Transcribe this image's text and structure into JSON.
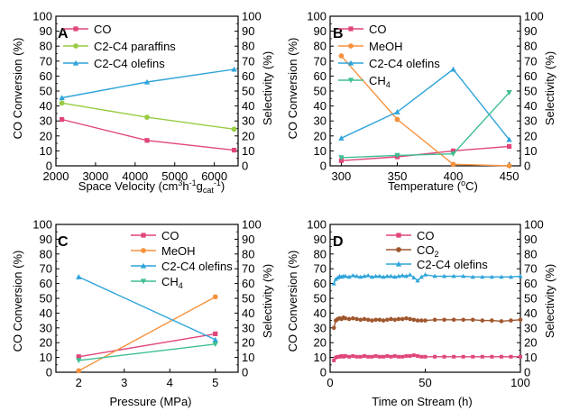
{
  "chart_data": [
    {
      "type": "line",
      "panel_label": "A",
      "xlabel": "Space Velocity (cm³h⁻¹g_cat⁻¹)",
      "xlabel_parts": {
        "a": "Space Velocity (cm",
        "b": "3",
        "c": "h",
        "d": "-1",
        "e": "g",
        "f": "cat",
        "g": "-1",
        "h": ")"
      },
      "ylabel_left": "CO Conversion (%)",
      "ylabel_right": "Selectivity (%)",
      "xlim": [
        2000,
        6600
      ],
      "xticks": [
        2000,
        3000,
        4000,
        5000,
        6000
      ],
      "ylim": [
        0,
        100
      ],
      "yticks": [
        0,
        10,
        20,
        30,
        40,
        50,
        60,
        70,
        80,
        90,
        100
      ],
      "legend_position": "top-left",
      "series": [
        {
          "name": "CO",
          "color": "#e0457b",
          "marker": "square",
          "x": [
            2150,
            4300,
            6500
          ],
          "y": [
            31,
            17,
            10.5
          ]
        },
        {
          "name": "C2-C4 paraffins",
          "color": "#99cc44",
          "marker": "circle",
          "x": [
            2150,
            4300,
            6500
          ],
          "y": [
            42,
            32.5,
            24.5
          ]
        },
        {
          "name": "C2-C4 olefins",
          "color": "#2fa4d9",
          "marker": "triangle",
          "x": [
            2150,
            4300,
            6500
          ],
          "y": [
            45.5,
            56,
            64.5
          ]
        }
      ]
    },
    {
      "type": "line",
      "panel_label": "B",
      "xlabel": "Temperature (ºC)",
      "xlabel_parts": {
        "a": "Temperature (",
        "b": "o",
        "c": "C)"
      },
      "ylabel_left": "CO Conversion (%)",
      "ylabel_right": "Selectivity (%)",
      "xlim": [
        290,
        460
      ],
      "xticks": [
        300,
        350,
        400,
        450
      ],
      "ylim": [
        0,
        100
      ],
      "yticks": [
        0,
        10,
        20,
        30,
        40,
        50,
        60,
        70,
        80,
        90,
        100
      ],
      "legend_position": "top-left",
      "series": [
        {
          "name": "CO",
          "color": "#e0457b",
          "marker": "square",
          "x": [
            300,
            350,
            400,
            450
          ],
          "y": [
            3.5,
            6,
            10,
            13
          ]
        },
        {
          "name": "MeOH",
          "color": "#f5923e",
          "marker": "circle",
          "x": [
            300,
            350,
            400,
            450
          ],
          "y": [
            73.5,
            31,
            1,
            0
          ]
        },
        {
          "name": "C2-C4 olefins",
          "color": "#2fa4d9",
          "marker": "triangle",
          "x": [
            300,
            350,
            400,
            450
          ],
          "y": [
            18.5,
            36,
            64.5,
            17.5
          ]
        },
        {
          "name": "CH4",
          "label_parts": {
            "a": "CH",
            "b": "4"
          },
          "color": "#3fbf8f",
          "marker": "triangle-down",
          "x": [
            300,
            350,
            400,
            450
          ],
          "y": [
            5.5,
            7,
            8,
            49
          ]
        }
      ]
    },
    {
      "type": "line",
      "panel_label": "C",
      "xlabel": "Pressure (MPa)",
      "ylabel_left": "CO Conversion (%)",
      "ylabel_right": "Selectivity (%)",
      "xlim": [
        1.5,
        5.5
      ],
      "xticks": [
        2,
        3,
        4,
        5
      ],
      "ylim": [
        0,
        100
      ],
      "yticks": [
        0,
        10,
        20,
        30,
        40,
        50,
        60,
        70,
        80,
        90,
        100
      ],
      "legend_position": "top-right",
      "series": [
        {
          "name": "CO",
          "color": "#e0457b",
          "marker": "square",
          "x": [
            2,
            5
          ],
          "y": [
            10.5,
            26
          ]
        },
        {
          "name": "MeOH",
          "color": "#f5923e",
          "marker": "circle",
          "x": [
            2,
            5
          ],
          "y": [
            1,
            51
          ]
        },
        {
          "name": "C2-C4 olefins",
          "color": "#2fa4d9",
          "marker": "triangle",
          "x": [
            2,
            5
          ],
          "y": [
            64.5,
            22
          ]
        },
        {
          "name": "CH4",
          "label_parts": {
            "a": "CH",
            "b": "4"
          },
          "color": "#3fbf8f",
          "marker": "triangle-down",
          "x": [
            2,
            5
          ],
          "y": [
            8,
            19
          ]
        }
      ]
    },
    {
      "type": "line",
      "panel_label": "D",
      "xlabel": "Time on Stream (h)",
      "ylabel_left": "CO Conversion (%)",
      "ylabel_right": "Selectivity (%)",
      "xlim": [
        0,
        100
      ],
      "xticks": [
        0,
        50,
        100
      ],
      "ylim": [
        0,
        100
      ],
      "yticks": [
        0,
        10,
        20,
        30,
        40,
        50,
        60,
        70,
        80,
        90,
        100
      ],
      "legend_position": "top-center",
      "series": [
        {
          "name": "CO",
          "color": "#e0457b",
          "marker": "square",
          "x": [
            2,
            3,
            4,
            5,
            6,
            7,
            8,
            10,
            12,
            14,
            16,
            18,
            20,
            22,
            24,
            26,
            28,
            30,
            32,
            34,
            36,
            38,
            40,
            42,
            44,
            46,
            48,
            50,
            55,
            60,
            65,
            70,
            75,
            80,
            85,
            90,
            95,
            100
          ],
          "y": [
            8,
            10,
            10.5,
            10.5,
            11,
            10.5,
            11,
            10.5,
            11,
            10.5,
            10.5,
            11,
            10.5,
            10.5,
            11,
            10.5,
            10.5,
            11,
            10.5,
            11,
            10.5,
            10.5,
            11,
            11,
            11.5,
            11,
            10.5,
            10.5,
            10.5,
            10.5,
            10.5,
            10.5,
            10.5,
            10.5,
            10.5,
            10.5,
            10.5,
            10.5
          ]
        },
        {
          "name": "CO2",
          "label_parts": {
            "a": "CO",
            "b": "2"
          },
          "color": "#a0562d",
          "marker": "circle",
          "x": [
            2,
            3,
            4,
            5,
            6,
            7,
            8,
            10,
            12,
            14,
            16,
            18,
            20,
            22,
            24,
            26,
            28,
            30,
            32,
            34,
            36,
            38,
            40,
            42,
            44,
            46,
            48,
            50,
            55,
            60,
            65,
            70,
            75,
            80,
            85,
            90,
            95,
            100
          ],
          "y": [
            30,
            35,
            36,
            36.5,
            36,
            37,
            36.5,
            36,
            36.5,
            36,
            35.5,
            36,
            35.5,
            35,
            35.5,
            35.5,
            35,
            35.5,
            36,
            35.5,
            36,
            36,
            36.5,
            36,
            35.5,
            35,
            35,
            35,
            35.5,
            35.5,
            35.5,
            35.5,
            35.5,
            35,
            35,
            34.5,
            35,
            35.5
          ]
        },
        {
          "name": "C2-C4 olefins",
          "color": "#2fa4d9",
          "marker": "triangle",
          "x": [
            2,
            3,
            4,
            5,
            6,
            7,
            8,
            10,
            12,
            14,
            16,
            18,
            20,
            22,
            24,
            26,
            28,
            30,
            32,
            34,
            36,
            38,
            40,
            42,
            44,
            46,
            48,
            50,
            55,
            60,
            65,
            70,
            75,
            80,
            85,
            90,
            95,
            100
          ],
          "y": [
            60,
            63,
            64,
            65,
            64.5,
            65,
            65,
            64.5,
            65.5,
            65,
            64.5,
            65,
            65.5,
            64.5,
            65,
            65,
            64.5,
            65,
            65,
            64.5,
            65,
            65.5,
            65,
            66,
            64,
            62,
            64.5,
            66,
            65,
            65,
            65,
            65,
            64.5,
            64.5,
            64.5,
            64.5,
            64.5,
            65
          ]
        }
      ]
    }
  ]
}
